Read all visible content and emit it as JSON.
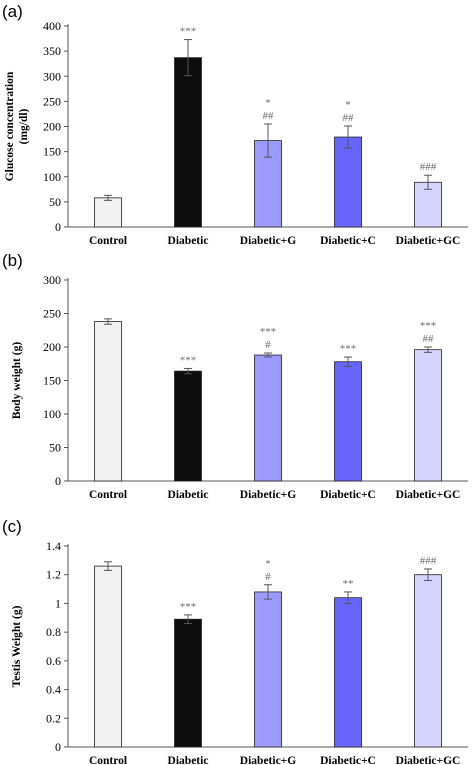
{
  "chart_data": [
    {
      "type": "bar",
      "panel_label": "(a)",
      "ylabel": "Glucose concentration (mg/dl)",
      "ylabel_lines": [
        "Glucose concentration",
        "(mg/dl)"
      ],
      "ylim": [
        0,
        400
      ],
      "yticks": [
        0,
        50,
        100,
        150,
        200,
        250,
        300,
        350,
        400
      ],
      "ytick_labels": [
        "0",
        "50",
        "100",
        "150",
        "200",
        "250",
        "300",
        "350",
        "400"
      ],
      "categories": [
        "Control",
        "Diabetic",
        "Diabetic+G",
        "Diabetic+C",
        "Diabetic+GC"
      ],
      "values": [
        58,
        337,
        172,
        179,
        89
      ],
      "errors": [
        5,
        36,
        33,
        22,
        14
      ],
      "annotations": [
        [],
        [
          "***"
        ],
        [
          "*",
          "##"
        ],
        [
          "*",
          "##"
        ],
        [
          "###"
        ]
      ],
      "colors": [
        "#f2f2f2",
        "#0d0d0d",
        "#9b9bff",
        "#6666ff",
        "#d4d4ff"
      ],
      "grid": false
    },
    {
      "type": "bar",
      "panel_label": "(b)",
      "ylabel": "Body weight (g)",
      "ylabel_lines": [
        "Body weight (g)"
      ],
      "ylim": [
        0,
        300
      ],
      "yticks": [
        0,
        50,
        100,
        150,
        200,
        250,
        300
      ],
      "ytick_labels": [
        "0",
        "50",
        "100",
        "150",
        "200",
        "250",
        "300"
      ],
      "categories": [
        "Control",
        "Diabetic",
        "Diabetic+G",
        "Diabetic+C",
        "Diabetic+GC"
      ],
      "values": [
        238,
        164,
        188,
        178,
        196
      ],
      "errors": [
        4,
        4,
        3,
        7,
        4
      ],
      "annotations": [
        [],
        [
          "***"
        ],
        [
          "***",
          "#"
        ],
        [
          "***"
        ],
        [
          "***",
          "##"
        ]
      ],
      "colors": [
        "#f2f2f2",
        "#0d0d0d",
        "#9b9bff",
        "#6666ff",
        "#d4d4ff"
      ],
      "grid": false
    },
    {
      "type": "bar",
      "panel_label": "(c)",
      "ylabel": "Testis Weight (g)",
      "ylabel_lines": [
        "Testis Weight (g)"
      ],
      "ylim": [
        0,
        1.4
      ],
      "yticks": [
        0,
        0.2,
        0.4,
        0.6,
        0.8,
        1.0,
        1.2,
        1.4
      ],
      "ytick_labels": [
        "0",
        "0.2",
        "0.4",
        "0.6",
        "0.8",
        "1",
        "1.2",
        "1.4"
      ],
      "categories": [
        "Control",
        "Diabetic",
        "Diabetic+G",
        "Diabetic+C",
        "Diabetic+GC"
      ],
      "values": [
        1.26,
        0.89,
        1.08,
        1.04,
        1.2
      ],
      "errors": [
        0.03,
        0.03,
        0.05,
        0.04,
        0.04
      ],
      "annotations": [
        [],
        [
          "***"
        ],
        [
          "*",
          "#"
        ],
        [
          "**"
        ],
        [
          "###"
        ]
      ],
      "colors": [
        "#f2f2f2",
        "#0d0d0d",
        "#9b9bff",
        "#6666ff",
        "#d4d4ff"
      ],
      "grid": false
    }
  ]
}
